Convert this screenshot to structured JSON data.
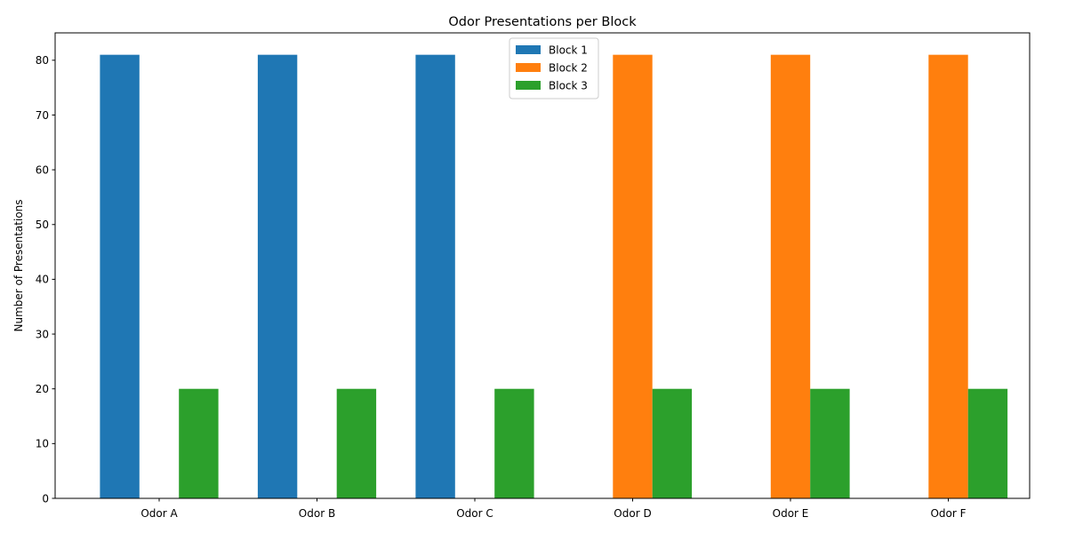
{
  "chart_data": {
    "type": "bar",
    "title": "Odor Presentations per Block",
    "xlabel": "",
    "ylabel": "Number of Presentations",
    "categories": [
      "Odor A",
      "Odor B",
      "Odor C",
      "Odor D",
      "Odor E",
      "Odor F"
    ],
    "series": [
      {
        "name": "Block 1",
        "color": "#1f77b4",
        "values": [
          81,
          81,
          81,
          0,
          0,
          0
        ]
      },
      {
        "name": "Block 2",
        "color": "#ff7f0e",
        "values": [
          0,
          0,
          0,
          81,
          81,
          81
        ]
      },
      {
        "name": "Block 3",
        "color": "#2ca02c",
        "values": [
          20,
          20,
          20,
          20,
          20,
          20
        ]
      }
    ],
    "ylim": [
      0,
      85
    ],
    "yticks": [
      0,
      10,
      20,
      30,
      40,
      50,
      60,
      70,
      80
    ],
    "grid": false,
    "legend_position": "top-center"
  }
}
